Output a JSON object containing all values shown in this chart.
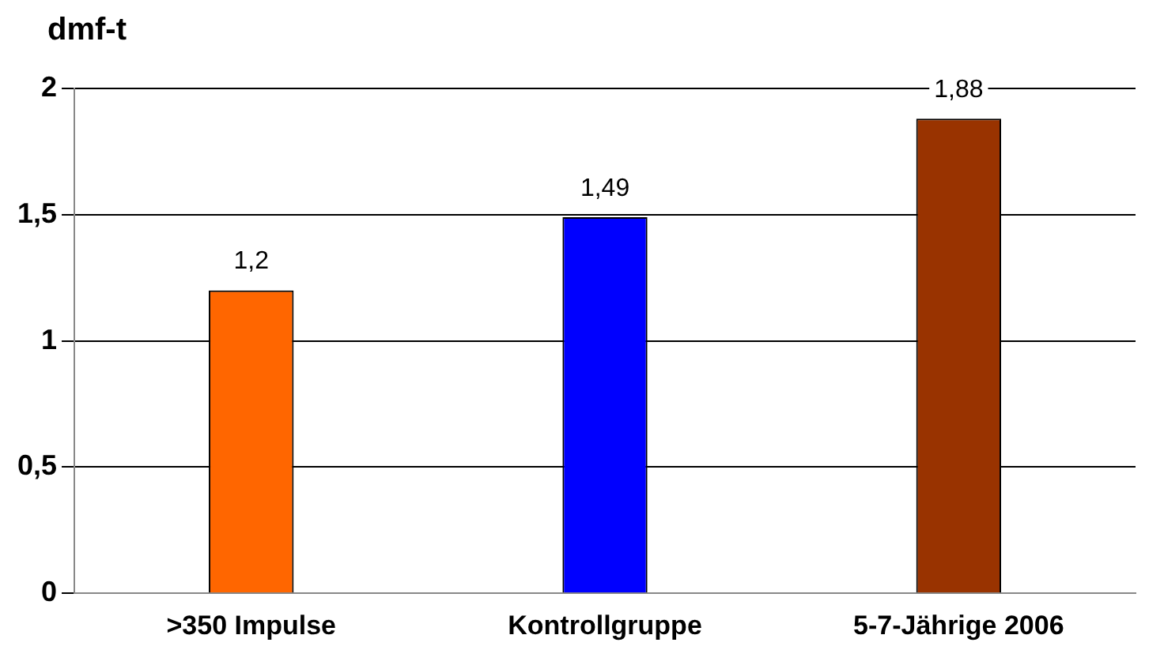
{
  "chart_data": {
    "type": "bar",
    "ylabel": "dmf-t",
    "categories": [
      ">350 Impulse",
      "Kontrollgruppe",
      "5-7-Jährige 2006"
    ],
    "values": [
      1.2,
      1.49,
      1.88
    ],
    "value_labels": [
      "1,2",
      "1,49",
      "1,88"
    ],
    "colors": [
      "#ff6600",
      "#0000ff",
      "#993300"
    ],
    "ylim": [
      0,
      2
    ],
    "yticks": [
      0,
      {
        "value": 0.5,
        "label": "0,5"
      },
      1,
      {
        "value": 1.5,
        "label": "1,5"
      },
      2
    ],
    "grid": "y",
    "legend": false
  }
}
